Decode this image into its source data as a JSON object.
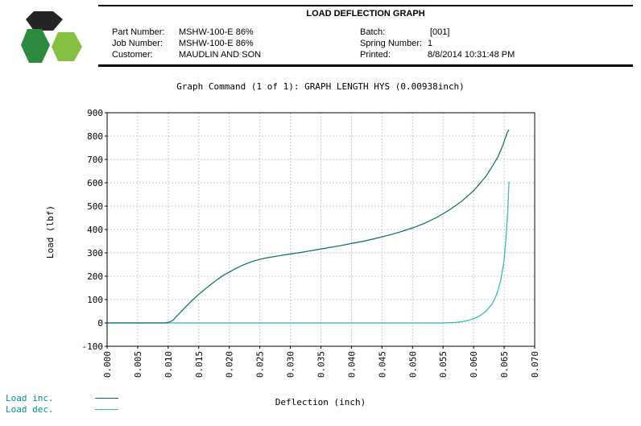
{
  "header": {
    "report_title": "LOAD DEFLECTION GRAPH",
    "part_number_label": "Part Number:",
    "part_number": "MSHW-100-E 86%",
    "job_number_label": "Job Number:",
    "job_number": "MSHW-100-E 86%",
    "customer_label": "Customer:",
    "customer": "MAUDLIN AND SON",
    "batch_label": "Batch:",
    "batch": "[001]",
    "spring_number_label": "Spring Number:",
    "spring_number": "1",
    "printed_label": "Printed:",
    "printed": "8/8/2014 10:31:48 PM"
  },
  "colors": {
    "logo_dark": "#252525",
    "logo_green_dark": "#2e8a3e",
    "logo_green_light": "#86c043",
    "series_inc": "#0a6b66",
    "series_dec": "#2ab8ad",
    "legend_text": "#00917f"
  },
  "chart_data": {
    "type": "line",
    "title": "Graph Command (1 of 1): GRAPH LENGTH HYS (0.00938inch)",
    "xlabel": "Deflection (inch)",
    "ylabel": "Load (lbf)",
    "xlim": [
      0.0,
      0.07
    ],
    "ylim": [
      -100,
      900
    ],
    "xticks": [
      "0.000",
      "0.005",
      "0.010",
      "0.015",
      "0.020",
      "0.025",
      "0.030",
      "0.035",
      "0.040",
      "0.045",
      "0.050",
      "0.055",
      "0.060",
      "0.065",
      "0.070"
    ],
    "yticks": [
      "-100",
      "0",
      "100",
      "200",
      "300",
      "400",
      "500",
      "600",
      "700",
      "800",
      "900"
    ],
    "grid": true,
    "legend_position": "bottom-left",
    "series": [
      {
        "name": "Load inc.",
        "x": [
          0.0,
          0.0095,
          0.0103,
          0.0108,
          0.0115,
          0.012,
          0.013,
          0.014,
          0.015,
          0.016,
          0.017,
          0.018,
          0.019,
          0.02,
          0.021,
          0.022,
          0.023,
          0.024,
          0.025,
          0.026,
          0.028,
          0.03,
          0.032,
          0.034,
          0.036,
          0.038,
          0.04,
          0.042,
          0.044,
          0.046,
          0.048,
          0.05,
          0.052,
          0.054,
          0.056,
          0.058,
          0.06,
          0.062,
          0.063,
          0.064,
          0.0648,
          0.0655,
          0.0658
        ],
        "y": [
          0,
          0,
          5,
          12,
          32,
          45,
          72,
          98,
          122,
          144,
          165,
          185,
          203,
          218,
          232,
          245,
          256,
          265,
          272,
          278,
          287,
          295,
          303,
          312,
          321,
          330,
          340,
          350,
          362,
          375,
          390,
          407,
          427,
          452,
          483,
          520,
          566,
          627,
          668,
          712,
          762,
          815,
          828
        ]
      },
      {
        "name": "Load dec.",
        "x": [
          0.0,
          0.055,
          0.057,
          0.058,
          0.059,
          0.06,
          0.061,
          0.062,
          0.063,
          0.0635,
          0.064,
          0.0645,
          0.065,
          0.0653,
          0.0656,
          0.0658
        ],
        "y": [
          0,
          0,
          2,
          5,
          10,
          18,
          30,
          50,
          80,
          105,
          140,
          190,
          270,
          360,
          480,
          605
        ]
      }
    ]
  }
}
